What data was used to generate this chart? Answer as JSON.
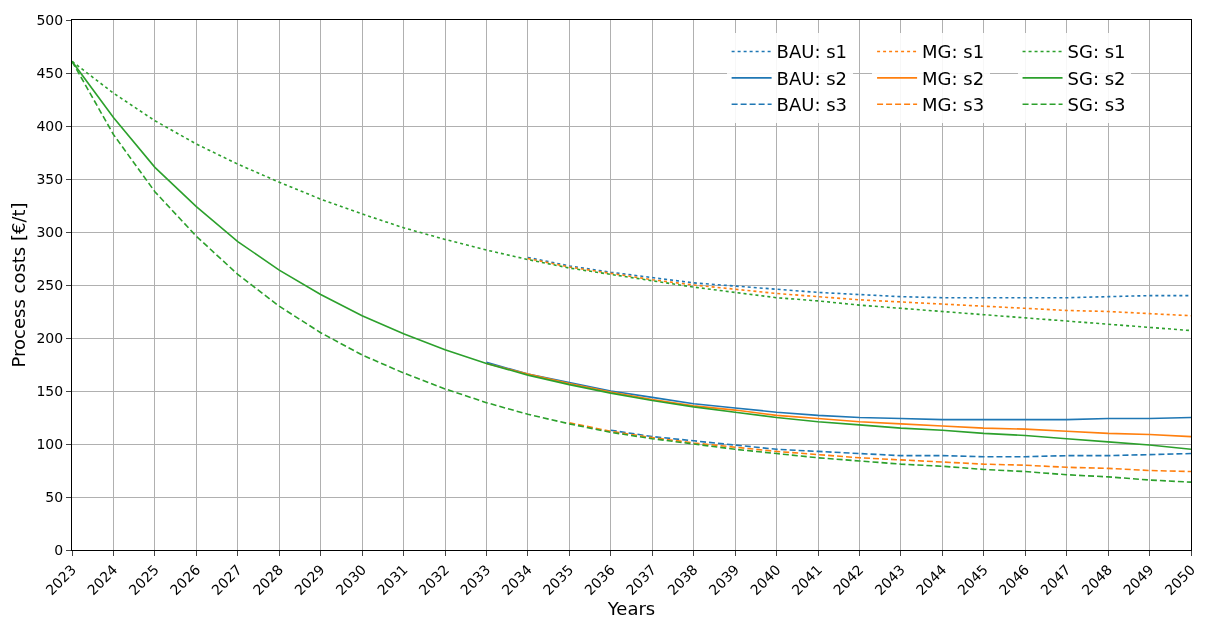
{
  "chart_data": {
    "type": "line",
    "xlabel": "Years",
    "ylabel": "Process costs [€/t]",
    "x": [
      2023,
      2024,
      2025,
      2026,
      2027,
      2028,
      2029,
      2030,
      2031,
      2032,
      2033,
      2034,
      2035,
      2036,
      2037,
      2038,
      2039,
      2040,
      2041,
      2042,
      2043,
      2044,
      2045,
      2046,
      2047,
      2048,
      2049,
      2050
    ],
    "xlim": [
      2023,
      2050
    ],
    "xticks": [
      2023,
      2024,
      2025,
      2026,
      2027,
      2028,
      2029,
      2030,
      2031,
      2032,
      2033,
      2034,
      2035,
      2036,
      2037,
      2038,
      2039,
      2040,
      2041,
      2042,
      2043,
      2044,
      2045,
      2046,
      2047,
      2048,
      2049,
      2050
    ],
    "ylim": [
      0,
      500
    ],
    "yticks": [
      0,
      50,
      100,
      150,
      200,
      250,
      300,
      350,
      400,
      450,
      500
    ],
    "grid": true,
    "legend": "top right",
    "marker": "none",
    "series": [
      {
        "name": "BAU: s1",
        "color": "#1f77b4",
        "line_style": "dotted",
        "values": [
          null,
          null,
          null,
          null,
          null,
          null,
          null,
          null,
          null,
          null,
          null,
          276,
          268,
          262,
          257,
          252,
          249,
          246,
          243,
          241,
          239,
          238,
          238,
          238,
          238,
          239,
          240,
          240
        ]
      },
      {
        "name": "BAU: s2",
        "color": "#1f77b4",
        "line_style": "solid",
        "values": [
          null,
          null,
          null,
          null,
          null,
          null,
          null,
          null,
          null,
          null,
          177,
          166,
          158,
          150,
          144,
          138,
          134,
          130,
          127,
          125,
          124,
          123,
          123,
          123,
          123,
          124,
          124,
          125
        ]
      },
      {
        "name": "BAU: s3",
        "color": "#1f77b4",
        "line_style": "dashed",
        "values": [
          null,
          null,
          null,
          null,
          null,
          null,
          null,
          null,
          null,
          null,
          null,
          null,
          null,
          113,
          107,
          103,
          99,
          95,
          93,
          91,
          89,
          89,
          88,
          88,
          89,
          89,
          90,
          91
        ]
      },
      {
        "name": "MG: s1",
        "color": "#ff7f0e",
        "line_style": "dotted",
        "values": [
          null,
          null,
          null,
          null,
          null,
          null,
          null,
          null,
          null,
          null,
          null,
          275,
          267,
          261,
          255,
          250,
          246,
          242,
          239,
          236,
          234,
          232,
          230,
          228,
          226,
          225,
          223,
          221
        ]
      },
      {
        "name": "MG: s2",
        "color": "#ff7f0e",
        "line_style": "solid",
        "values": [
          null,
          null,
          null,
          null,
          null,
          null,
          null,
          null,
          null,
          null,
          176,
          166,
          157,
          149,
          142,
          136,
          132,
          127,
          124,
          121,
          119,
          117,
          115,
          114,
          112,
          110,
          109,
          107
        ]
      },
      {
        "name": "MG: s3",
        "color": "#ff7f0e",
        "line_style": "dashed",
        "values": [
          null,
          null,
          null,
          null,
          null,
          null,
          null,
          null,
          null,
          null,
          null,
          null,
          120,
          112,
          106,
          101,
          97,
          93,
          90,
          87,
          85,
          83,
          81,
          80,
          78,
          77,
          75,
          74
        ]
      },
      {
        "name": "SG: s1",
        "color": "#2ca02c",
        "line_style": "dotted",
        "values": [
          461,
          431,
          405,
          383,
          364,
          347,
          331,
          317,
          304,
          293,
          283,
          274,
          266,
          260,
          254,
          248,
          243,
          238,
          235,
          231,
          228,
          225,
          222,
          219,
          216,
          213,
          210,
          207
        ]
      },
      {
        "name": "SG: s2",
        "color": "#2ca02c",
        "line_style": "solid",
        "values": [
          461,
          408,
          361,
          324,
          291,
          264,
          241,
          221,
          204,
          189,
          176,
          165,
          156,
          148,
          141,
          135,
          130,
          125,
          121,
          118,
          115,
          113,
          110,
          108,
          105,
          102,
          99,
          95
        ]
      },
      {
        "name": "SG: s3",
        "color": "#2ca02c",
        "line_style": "dashed",
        "values": [
          461,
          392,
          338,
          296,
          260,
          230,
          205,
          184,
          167,
          152,
          139,
          128,
          119,
          111,
          105,
          100,
          95,
          91,
          87,
          84,
          81,
          79,
          76,
          74,
          71,
          69,
          66,
          64
        ]
      }
    ]
  }
}
